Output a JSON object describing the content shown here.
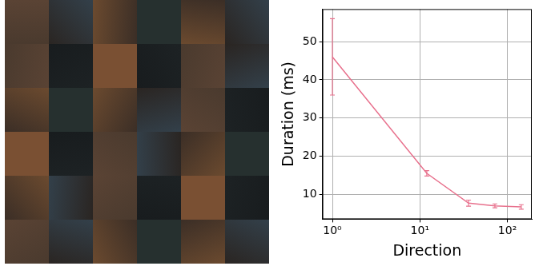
{
  "chart_data": {
    "type": "line",
    "x_label": "Direction",
    "y_label": "Duration (ms)",
    "log": "x",
    "grid": true,
    "xlim": [
      0.77,
      190
    ],
    "xticks": [
      {
        "value": 1,
        "label": "10⁰"
      },
      {
        "value": 10,
        "label": "10¹"
      },
      {
        "value": 100,
        "label": "10²"
      }
    ],
    "ylim": [
      3.5,
      58.5
    ],
    "yticks": [
      10,
      20,
      30,
      40,
      50
    ],
    "series": [
      {
        "name": "Duration",
        "color": "#e8718d",
        "x": [
          1,
          12,
          36,
          72,
          144
        ],
        "values": [
          46,
          15.5,
          7.7,
          7.0,
          6.7
        ],
        "errors": [
          10,
          0.7,
          0.8,
          0.5,
          0.6
        ]
      }
    ]
  }
}
